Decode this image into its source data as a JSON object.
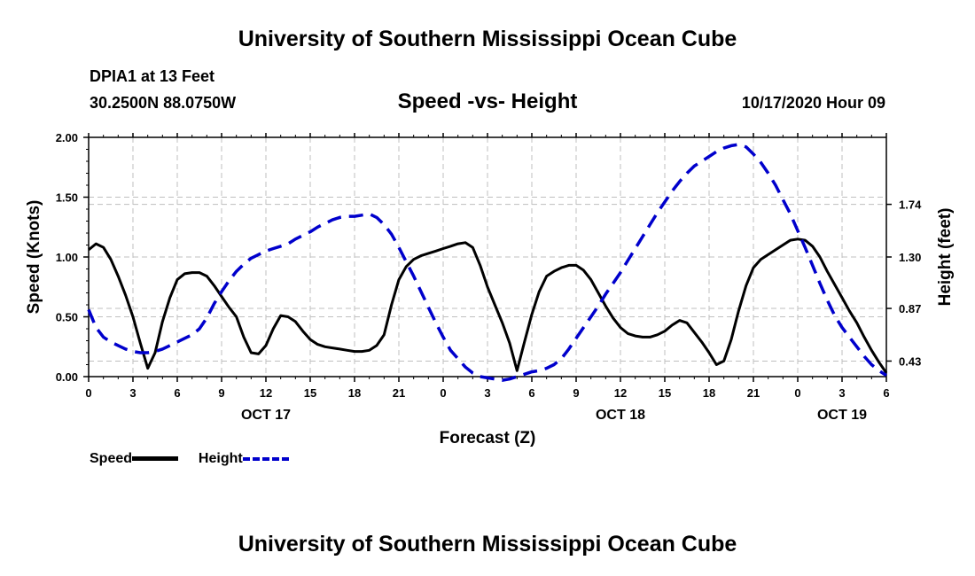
{
  "header": {
    "title_top": "University of Southern Mississippi Ocean Cube",
    "title_bottom": "University of Southern Mississippi Ocean Cube",
    "station": "DPIA1 at 13 Feet",
    "coords": "30.2500N 88.0750W",
    "subtitle": "Speed -vs- Height",
    "datetime": "10/17/2020 Hour 09"
  },
  "legend": {
    "speed_label": "Speed",
    "height_label": "Height"
  },
  "colors": {
    "speed": "#000000",
    "height": "#0000cc",
    "grid": "#bfbfbf"
  },
  "chart_data": {
    "type": "line",
    "title": "Speed -vs- Height",
    "xlabel": "Forecast (Z)",
    "ylabel": "Speed (Knots)",
    "y2label": "Height (feet)",
    "x_range": [
      0,
      54
    ],
    "xlim": [
      0,
      54
    ],
    "ylim": [
      0,
      2.0
    ],
    "y2lim": [
      0.3,
      2.3
    ],
    "grid": true,
    "legend_position": "bottom-left",
    "x_tick_labels": [
      "0",
      "3",
      "6",
      "9",
      "12",
      "15",
      "18",
      "21",
      "0",
      "3",
      "6",
      "9",
      "12",
      "15",
      "18",
      "21",
      "0",
      "3",
      "6"
    ],
    "x_ticks": [
      0,
      3,
      6,
      9,
      12,
      15,
      18,
      21,
      24,
      27,
      30,
      33,
      36,
      39,
      42,
      45,
      48,
      51,
      54
    ],
    "y_ticks": [
      0.0,
      0.5,
      1.0,
      1.5,
      2.0
    ],
    "y_tick_labels": [
      "0.00",
      "0.50",
      "1.00",
      "1.50",
      "2.00"
    ],
    "y2_ticks": [
      0.43,
      0.87,
      1.3,
      1.74
    ],
    "y2_tick_labels": [
      "0.43",
      "0.87",
      "1.30",
      "1.74"
    ],
    "date_labels": [
      {
        "x": 12,
        "text": "OCT 17"
      },
      {
        "x": 36,
        "text": "OCT 18"
      },
      {
        "x": 51,
        "text": "OCT 19"
      }
    ],
    "series": [
      {
        "name": "Speed",
        "axis": "left",
        "style": "solid",
        "x": [
          0,
          0.5,
          1,
          1.5,
          2,
          2.5,
          3,
          3.5,
          4,
          4.5,
          5,
          5.5,
          6,
          6.5,
          7,
          7.5,
          8,
          8.5,
          9,
          9.5,
          10,
          10.5,
          11,
          11.5,
          12,
          12.5,
          13,
          13.5,
          14,
          14.5,
          15,
          15.5,
          16,
          16.5,
          17,
          17.5,
          18,
          18.5,
          19,
          19.5,
          20,
          20.5,
          21,
          21.5,
          22,
          22.5,
          23,
          23.5,
          24,
          24.5,
          25,
          25.5,
          26,
          26.5,
          27,
          27.5,
          28,
          28.5,
          29,
          29.5,
          30,
          30.5,
          31,
          31.5,
          32,
          32.5,
          33,
          33.5,
          34,
          34.5,
          35,
          35.5,
          36,
          36.5,
          37,
          37.5,
          38,
          38.5,
          39,
          39.5,
          40,
          40.5,
          41,
          41.5,
          42,
          42.5,
          43,
          43.5,
          44,
          44.5,
          45,
          45.5,
          46,
          46.5,
          47,
          47.5,
          48,
          48.5,
          49,
          49.5,
          50,
          50.5,
          51,
          51.5,
          52,
          52.5,
          53,
          53.5,
          54
        ],
        "values": [
          1.06,
          1.11,
          1.08,
          0.98,
          0.84,
          0.68,
          0.5,
          0.28,
          0.07,
          0.2,
          0.46,
          0.66,
          0.81,
          0.86,
          0.87,
          0.87,
          0.84,
          0.76,
          0.67,
          0.58,
          0.5,
          0.33,
          0.2,
          0.19,
          0.26,
          0.4,
          0.51,
          0.5,
          0.46,
          0.38,
          0.31,
          0.27,
          0.25,
          0.24,
          0.23,
          0.22,
          0.21,
          0.21,
          0.22,
          0.26,
          0.35,
          0.6,
          0.81,
          0.92,
          0.98,
          1.01,
          1.03,
          1.05,
          1.07,
          1.09,
          1.11,
          1.12,
          1.08,
          0.93,
          0.75,
          0.6,
          0.45,
          0.28,
          0.05,
          0.29,
          0.52,
          0.71,
          0.84,
          0.88,
          0.91,
          0.93,
          0.93,
          0.89,
          0.81,
          0.7,
          0.59,
          0.49,
          0.41,
          0.36,
          0.34,
          0.33,
          0.33,
          0.35,
          0.38,
          0.43,
          0.47,
          0.45,
          0.37,
          0.29,
          0.2,
          0.1,
          0.13,
          0.31,
          0.55,
          0.76,
          0.91,
          0.98,
          1.02,
          1.06,
          1.1,
          1.14,
          1.15,
          1.14,
          1.09,
          1.0,
          0.88,
          0.77,
          0.66,
          0.55,
          0.45,
          0.33,
          0.22,
          0.12,
          0.03
        ]
      },
      {
        "name": "Height",
        "axis": "right",
        "style": "dashed",
        "x": [
          0,
          0.5,
          1,
          1.5,
          2,
          2.5,
          3,
          3.5,
          4,
          4.5,
          5,
          5.5,
          6,
          6.5,
          7,
          7.5,
          8,
          8.5,
          9,
          9.5,
          10,
          10.5,
          11,
          11.5,
          12,
          12.5,
          13,
          13.5,
          14,
          14.5,
          15,
          15.5,
          16,
          16.5,
          17,
          17.5,
          18,
          18.5,
          19,
          19.5,
          20,
          20.5,
          21,
          21.5,
          22,
          22.5,
          23,
          23.5,
          24,
          24.5,
          25,
          25.5,
          26,
          26.5,
          27,
          27.5,
          28,
          28.5,
          29,
          29.5,
          30,
          30.5,
          31,
          31.5,
          32,
          32.5,
          33,
          33.5,
          34,
          34.5,
          35,
          35.5,
          36,
          36.5,
          37,
          37.5,
          38,
          38.5,
          39,
          39.5,
          40,
          40.5,
          41,
          41.5,
          42,
          42.5,
          43,
          43.5,
          44,
          44.5,
          45,
          45.5,
          46,
          46.5,
          47,
          47.5,
          48,
          48.5,
          49,
          49.5,
          50,
          50.5,
          51,
          51.5,
          52,
          52.5,
          53,
          53.5,
          54
        ],
        "values": [
          0.86,
          0.71,
          0.63,
          0.59,
          0.56,
          0.53,
          0.51,
          0.5,
          0.5,
          0.51,
          0.53,
          0.56,
          0.59,
          0.62,
          0.65,
          0.7,
          0.79,
          0.91,
          1.01,
          1.1,
          1.18,
          1.24,
          1.29,
          1.32,
          1.35,
          1.37,
          1.39,
          1.41,
          1.45,
          1.48,
          1.51,
          1.55,
          1.58,
          1.61,
          1.63,
          1.64,
          1.64,
          1.65,
          1.66,
          1.63,
          1.57,
          1.49,
          1.38,
          1.26,
          1.14,
          1.01,
          0.88,
          0.75,
          0.63,
          0.52,
          0.45,
          0.38,
          0.33,
          0.3,
          0.29,
          0.28,
          0.27,
          0.28,
          0.3,
          0.32,
          0.34,
          0.35,
          0.37,
          0.4,
          0.45,
          0.53,
          0.62,
          0.71,
          0.8,
          0.89,
          0.99,
          1.08,
          1.17,
          1.27,
          1.37,
          1.47,
          1.57,
          1.67,
          1.76,
          1.85,
          1.93,
          2.0,
          2.06,
          2.1,
          2.14,
          2.18,
          2.21,
          2.23,
          2.24,
          2.22,
          2.16,
          2.09,
          2.0,
          1.9,
          1.78,
          1.66,
          1.52,
          1.38,
          1.23,
          1.08,
          0.94,
          0.81,
          0.71,
          0.63,
          0.55,
          0.47,
          0.4,
          0.35,
          0.31
        ]
      }
    ]
  }
}
